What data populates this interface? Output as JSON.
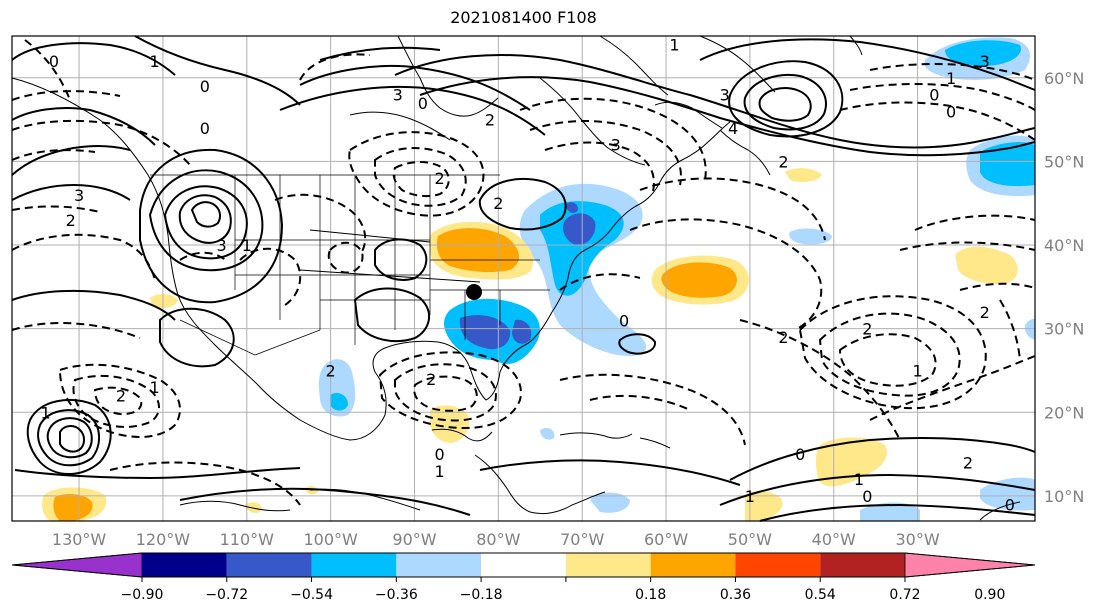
{
  "title": "2021081400 F108",
  "lon_labels": [
    "130°W",
    "120°W",
    "110°W",
    "100°W",
    "90°W",
    "80°W",
    "70°W",
    "60°W",
    "50°W",
    "40°W",
    "30°W"
  ],
  "lat_labels": [
    "60°N",
    "50°N",
    "40°N",
    "30°N",
    "20°N",
    "10°N"
  ],
  "colorbar": {
    "colors": [
      "#9932cc",
      "#00008b",
      "#3658c8",
      "#00bfff",
      "#add8ff",
      "#ffffff",
      "#ffe88a",
      "#ffa500",
      "#ff4500",
      "#b22222",
      "#ff82ab"
    ],
    "tick_labels": [
      "−0.90",
      "−0.72",
      "−0.54",
      "−0.36",
      "−0.18",
      "0.18",
      "0.36",
      "0.54",
      "0.72",
      "0.90"
    ]
  },
  "contour_labels": [
    {
      "text": "0",
      "lon": -133,
      "lat": 62
    },
    {
      "text": "1",
      "lon": -121,
      "lat": 62
    },
    {
      "text": "0",
      "lon": -115,
      "lat": 59
    },
    {
      "text": "0",
      "lon": -115,
      "lat": 54
    },
    {
      "text": "3",
      "lon": -130,
      "lat": 46
    },
    {
      "text": "2",
      "lon": -131,
      "lat": 43
    },
    {
      "text": "3",
      "lon": -113,
      "lat": 40
    },
    {
      "text": "3",
      "lon": -92,
      "lat": 58
    },
    {
      "text": "0",
      "lon": -89,
      "lat": 57
    },
    {
      "text": "2",
      "lon": -81,
      "lat": 55
    },
    {
      "text": "3",
      "lon": -66,
      "lat": 52
    },
    {
      "text": "2",
      "lon": -87,
      "lat": 48
    },
    {
      "text": "2",
      "lon": -80,
      "lat": 45
    },
    {
      "text": "3",
      "lon": -53,
      "lat": 58
    },
    {
      "text": "4",
      "lon": -52,
      "lat": 54
    },
    {
      "text": "2",
      "lon": -46,
      "lat": 50
    },
    {
      "text": "0",
      "lon": -26,
      "lat": 56
    },
    {
      "text": "1",
      "lon": -26,
      "lat": 60
    },
    {
      "text": "3",
      "lon": -22,
      "lat": 62
    },
    {
      "text": "0",
      "lon": -28,
      "lat": 58
    },
    {
      "text": "1",
      "lon": -59,
      "lat": 64
    },
    {
      "text": "0",
      "lon": -65,
      "lat": 31
    },
    {
      "text": "2",
      "lon": -36,
      "lat": 30
    },
    {
      "text": "2",
      "lon": -46,
      "lat": 29
    },
    {
      "text": "2",
      "lon": -22,
      "lat": 32
    },
    {
      "text": "1",
      "lon": -30,
      "lat": 25
    },
    {
      "text": "2",
      "lon": -88,
      "lat": 24
    },
    {
      "text": "2",
      "lon": -125,
      "lat": 22
    },
    {
      "text": "1",
      "lon": -121,
      "lat": 23
    },
    {
      "text": "1",
      "lon": -134,
      "lat": 20
    },
    {
      "text": "0",
      "lon": -87,
      "lat": 15
    },
    {
      "text": "1",
      "lon": -87,
      "lat": 13
    },
    {
      "text": "0",
      "lon": -44,
      "lat": 15
    },
    {
      "text": "1",
      "lon": -37,
      "lat": 12
    },
    {
      "text": "0",
      "lon": -36,
      "lat": 10
    },
    {
      "text": "1",
      "lon": -50,
      "lat": 10
    },
    {
      "text": "2",
      "lon": -24,
      "lat": 14
    },
    {
      "text": "0",
      "lon": -19,
      "lat": 9
    },
    {
      "text": "2",
      "lon": -100,
      "lat": 25
    },
    {
      "text": "1",
      "lon": -110,
      "lat": 40
    }
  ]
}
